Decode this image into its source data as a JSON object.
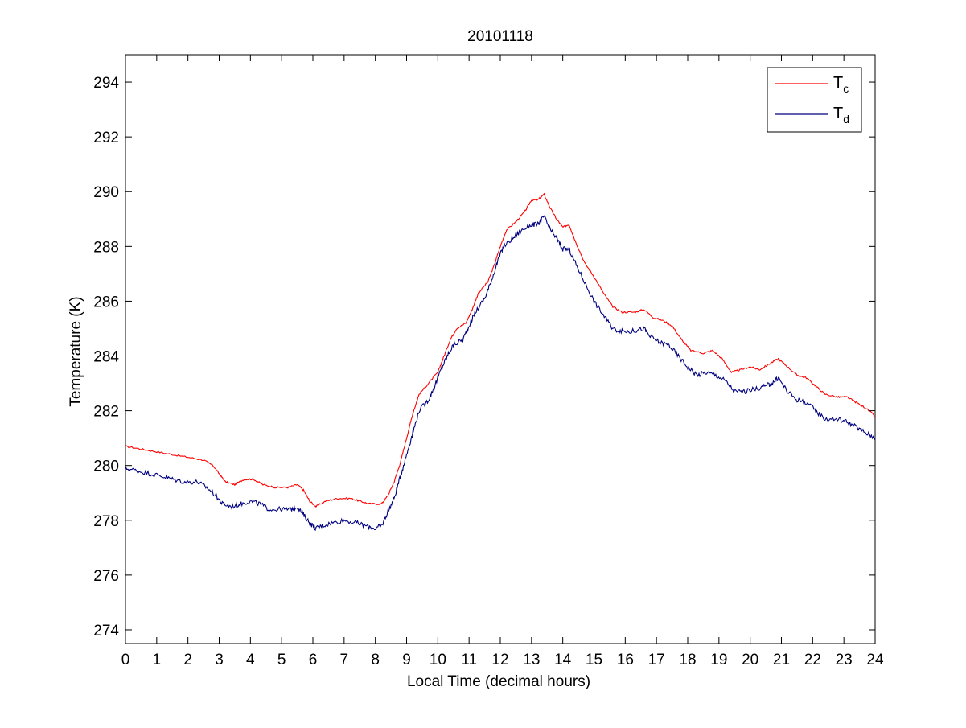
{
  "chart_data": {
    "type": "line",
    "title": "20101118",
    "xlabel": "Local Time (decimal hours)",
    "ylabel": "Temperature (K)",
    "xlim": [
      0,
      24
    ],
    "ylim": [
      273.5,
      295
    ],
    "xticks": [
      0,
      1,
      2,
      3,
      4,
      5,
      6,
      7,
      8,
      9,
      10,
      11,
      12,
      13,
      14,
      15,
      16,
      17,
      18,
      19,
      20,
      21,
      22,
      23,
      24
    ],
    "yticks": [
      274,
      276,
      278,
      280,
      282,
      284,
      286,
      288,
      290,
      292,
      294
    ],
    "grid": false,
    "legend_position": "top-right",
    "series": [
      {
        "name_main": "T",
        "name_sub": "c",
        "color": "#ff0000",
        "points": [
          [
            0,
            280.7
          ],
          [
            0.5,
            280.6
          ],
          [
            1,
            280.5
          ],
          [
            1.5,
            280.4
          ],
          [
            2,
            280.3
          ],
          [
            2.5,
            280.2
          ],
          [
            2.8,
            280.0
          ],
          [
            3.0,
            279.7
          ],
          [
            3.2,
            279.4
          ],
          [
            3.5,
            279.3
          ],
          [
            3.8,
            279.5
          ],
          [
            4.1,
            279.5
          ],
          [
            4.4,
            279.3
          ],
          [
            4.8,
            279.2
          ],
          [
            5.2,
            279.2
          ],
          [
            5.5,
            279.3
          ],
          [
            5.7,
            279.1
          ],
          [
            5.9,
            278.7
          ],
          [
            6.1,
            278.5
          ],
          [
            6.4,
            278.7
          ],
          [
            6.8,
            278.8
          ],
          [
            7.2,
            278.8
          ],
          [
            7.5,
            278.7
          ],
          [
            7.8,
            278.6
          ],
          [
            8.2,
            278.6
          ],
          [
            8.4,
            278.9
          ],
          [
            8.6,
            279.4
          ],
          [
            8.8,
            280.1
          ],
          [
            9.0,
            281.0
          ],
          [
            9.2,
            281.9
          ],
          [
            9.4,
            282.6
          ],
          [
            9.7,
            283.0
          ],
          [
            10.0,
            283.4
          ],
          [
            10.2,
            284.0
          ],
          [
            10.4,
            284.6
          ],
          [
            10.6,
            285.0
          ],
          [
            10.9,
            285.2
          ],
          [
            11.1,
            285.7
          ],
          [
            11.3,
            286.3
          ],
          [
            11.6,
            286.7
          ],
          [
            11.8,
            287.3
          ],
          [
            12.0,
            288.0
          ],
          [
            12.2,
            288.6
          ],
          [
            12.5,
            288.9
          ],
          [
            12.8,
            289.3
          ],
          [
            13.0,
            289.7
          ],
          [
            13.2,
            289.7
          ],
          [
            13.4,
            289.9
          ],
          [
            13.6,
            289.4
          ],
          [
            13.8,
            289.0
          ],
          [
            14.0,
            288.7
          ],
          [
            14.2,
            288.8
          ],
          [
            14.4,
            288.2
          ],
          [
            14.7,
            287.4
          ],
          [
            15.0,
            286.9
          ],
          [
            15.3,
            286.3
          ],
          [
            15.6,
            285.8
          ],
          [
            15.9,
            285.6
          ],
          [
            16.3,
            285.6
          ],
          [
            16.6,
            285.7
          ],
          [
            16.9,
            285.4
          ],
          [
            17.2,
            285.3
          ],
          [
            17.5,
            285.1
          ],
          [
            17.8,
            284.6
          ],
          [
            18.1,
            284.2
          ],
          [
            18.5,
            284.1
          ],
          [
            18.8,
            284.2
          ],
          [
            19.1,
            283.9
          ],
          [
            19.4,
            283.4
          ],
          [
            19.7,
            283.5
          ],
          [
            20.0,
            283.6
          ],
          [
            20.3,
            283.5
          ],
          [
            20.6,
            283.7
          ],
          [
            20.9,
            283.9
          ],
          [
            21.2,
            283.6
          ],
          [
            21.5,
            283.3
          ],
          [
            21.8,
            283.2
          ],
          [
            22.1,
            282.9
          ],
          [
            22.4,
            282.6
          ],
          [
            22.8,
            282.5
          ],
          [
            23.1,
            282.5
          ],
          [
            23.4,
            282.3
          ],
          [
            23.7,
            282.1
          ],
          [
            24.0,
            281.8
          ]
        ]
      },
      {
        "name_main": "T",
        "name_sub": "d",
        "color": "#00007f",
        "points": [
          [
            0,
            279.9
          ],
          [
            0.4,
            279.8
          ],
          [
            0.8,
            279.7
          ],
          [
            1.2,
            279.6
          ],
          [
            1.5,
            279.5
          ],
          [
            1.9,
            279.4
          ],
          [
            2.3,
            279.4
          ],
          [
            2.6,
            279.2
          ],
          [
            2.9,
            278.9
          ],
          [
            3.1,
            278.6
          ],
          [
            3.4,
            278.5
          ],
          [
            3.7,
            278.6
          ],
          [
            4.0,
            278.7
          ],
          [
            4.3,
            278.6
          ],
          [
            4.6,
            278.4
          ],
          [
            5.0,
            278.4
          ],
          [
            5.3,
            278.4
          ],
          [
            5.5,
            278.5
          ],
          [
            5.7,
            278.2
          ],
          [
            5.9,
            277.9
          ],
          [
            6.1,
            277.7
          ],
          [
            6.3,
            277.8
          ],
          [
            6.6,
            277.9
          ],
          [
            7.0,
            278.0
          ],
          [
            7.4,
            277.9
          ],
          [
            7.7,
            277.8
          ],
          [
            8.0,
            277.7
          ],
          [
            8.2,
            277.8
          ],
          [
            8.4,
            278.3
          ],
          [
            8.6,
            278.8
          ],
          [
            8.8,
            279.6
          ],
          [
            9.0,
            280.4
          ],
          [
            9.2,
            281.2
          ],
          [
            9.4,
            282.0
          ],
          [
            9.7,
            282.4
          ],
          [
            9.9,
            282.9
          ],
          [
            10.1,
            283.5
          ],
          [
            10.3,
            284.0
          ],
          [
            10.5,
            284.4
          ],
          [
            10.8,
            284.6
          ],
          [
            11.0,
            285.1
          ],
          [
            11.2,
            285.6
          ],
          [
            11.5,
            286.1
          ],
          [
            11.7,
            286.7
          ],
          [
            11.9,
            287.4
          ],
          [
            12.1,
            288.0
          ],
          [
            12.4,
            288.3
          ],
          [
            12.7,
            288.6
          ],
          [
            13.0,
            288.8
          ],
          [
            13.2,
            288.8
          ],
          [
            13.4,
            289.1
          ],
          [
            13.6,
            288.6
          ],
          [
            13.8,
            288.3
          ],
          [
            14.0,
            287.9
          ],
          [
            14.2,
            287.9
          ],
          [
            14.4,
            287.4
          ],
          [
            14.7,
            286.7
          ],
          [
            15.0,
            286.0
          ],
          [
            15.3,
            285.5
          ],
          [
            15.6,
            285.0
          ],
          [
            15.9,
            284.9
          ],
          [
            16.2,
            284.9
          ],
          [
            16.6,
            285.0
          ],
          [
            16.8,
            284.7
          ],
          [
            17.1,
            284.5
          ],
          [
            17.4,
            284.4
          ],
          [
            17.7,
            284.0
          ],
          [
            18.0,
            283.6
          ],
          [
            18.3,
            283.3
          ],
          [
            18.6,
            283.4
          ],
          [
            18.9,
            283.3
          ],
          [
            19.2,
            283.1
          ],
          [
            19.5,
            282.7
          ],
          [
            19.8,
            282.7
          ],
          [
            20.2,
            282.8
          ],
          [
            20.5,
            282.9
          ],
          [
            20.7,
            283.0
          ],
          [
            20.9,
            283.2
          ],
          [
            21.2,
            282.7
          ],
          [
            21.5,
            282.4
          ],
          [
            21.8,
            282.3
          ],
          [
            22.1,
            282.0
          ],
          [
            22.4,
            281.7
          ],
          [
            22.8,
            281.7
          ],
          [
            23.1,
            281.6
          ],
          [
            23.4,
            281.4
          ],
          [
            23.7,
            281.2
          ],
          [
            24.0,
            281.0
          ]
        ]
      }
    ]
  }
}
